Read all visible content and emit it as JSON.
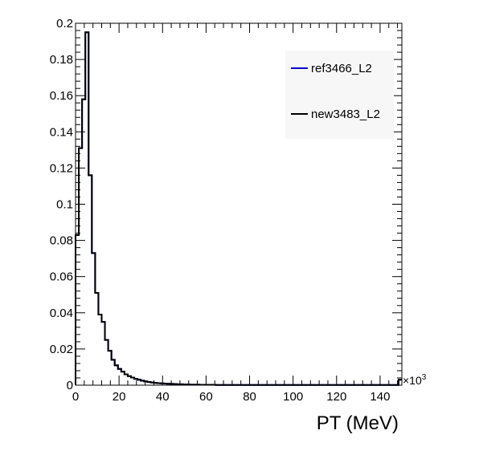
{
  "chart_data": {
    "type": "line",
    "title": "",
    "xlabel": "PT (MeV)",
    "ylabel": "",
    "x_multiplier": "×10",
    "x_multiplier_exponent": "3",
    "xlim": [
      0,
      150
    ],
    "ylim": [
      0,
      0.2
    ],
    "x_ticks": [
      0,
      20,
      40,
      60,
      80,
      100,
      120,
      140
    ],
    "x_tick_labels": [
      "0",
      "20",
      "40",
      "60",
      "80",
      "100",
      "120",
      "140"
    ],
    "y_ticks": [
      0,
      0.02,
      0.04,
      0.06,
      0.08,
      0.1,
      0.12,
      0.14,
      0.16,
      0.18,
      0.2
    ],
    "y_tick_labels": [
      "0",
      "0.02",
      "0.04",
      "0.06",
      "0.08",
      "0.1",
      "0.12",
      "0.14",
      "0.16",
      "0.18",
      "0.2"
    ],
    "bin_width": 1.5,
    "grid": false,
    "legend_position": "top-right",
    "series": [
      {
        "name": "ref3466_L2",
        "color": "#0000cc",
        "values": [
          0.083,
          0.131,
          0.158,
          0.195,
          0.116,
          0.073,
          0.051,
          0.039,
          0.035,
          0.025,
          0.019,
          0.014,
          0.011,
          0.009,
          0.0075,
          0.006,
          0.005,
          0.0042,
          0.0035,
          0.003,
          0.0025,
          0.0021,
          0.0018,
          0.0015,
          0.0013,
          0.0011,
          0.001,
          0.0009,
          0.0008,
          0.0007,
          0.0006,
          0.0005,
          0.0005,
          0.0004,
          0.0004,
          0.0003,
          0.0003,
          0.0003,
          0.0002,
          0.0002,
          0.0002,
          0.0002,
          0.0002,
          0.0001,
          0.0001,
          0.0001,
          0.0001,
          0.0001,
          0.0001,
          0.0001,
          0.0001,
          0.0001,
          0.0001,
          0.0001,
          0.0001,
          0.0001,
          0.0001,
          0.0001,
          0.0001,
          0.0001,
          0.0001,
          0.0001,
          0.0001,
          0.0001,
          0.0001,
          0.0001,
          0.0001,
          0.0001,
          0.0001,
          0.0001,
          0.0001,
          0.0001,
          0.0001,
          0.0001,
          0.0001,
          0.0001,
          0.0001,
          0.0001,
          0.0001,
          0.0001,
          0.0001,
          0.0001,
          0.0001,
          0.0001,
          0.0001,
          0.0001,
          0.0001,
          0.0001,
          0.0001,
          0.0001,
          0.0001,
          0.0001,
          0.0001,
          0.0001,
          0.0001,
          0.0001,
          0.0001,
          0.0001,
          0.0001,
          0.003
        ]
      },
      {
        "name": "new3483_L2",
        "color": "#000000",
        "values": [
          0.083,
          0.131,
          0.158,
          0.195,
          0.116,
          0.073,
          0.051,
          0.039,
          0.035,
          0.025,
          0.019,
          0.014,
          0.011,
          0.009,
          0.0075,
          0.006,
          0.005,
          0.0042,
          0.0035,
          0.003,
          0.0025,
          0.0021,
          0.0018,
          0.0015,
          0.0013,
          0.0011,
          0.001,
          0.0009,
          0.0008,
          0.0007,
          0.0006,
          0.0005,
          0.0005,
          0.0004,
          0.0004,
          0.0003,
          0.0003,
          0.0003,
          0.0002,
          0.0002,
          0.0002,
          0.0002,
          0.0002,
          0.0001,
          0.0001,
          0.0001,
          0.0001,
          0.0001,
          0.0001,
          0.0001,
          0.0001,
          0.0001,
          0.0001,
          0.0001,
          0.0001,
          0.0001,
          0.0001,
          0.0001,
          0.0001,
          0.0001,
          0.0001,
          0.0001,
          0.0001,
          0.0001,
          0.0001,
          0.0001,
          0.0001,
          0.0001,
          0.0001,
          0.0001,
          0.0001,
          0.0001,
          0.0001,
          0.0001,
          0.0001,
          0.0001,
          0.0001,
          0.0001,
          0.0001,
          0.0001,
          0.0001,
          0.0001,
          0.0001,
          0.0001,
          0.0001,
          0.0001,
          0.0001,
          0.0001,
          0.0001,
          0.0001,
          0.0001,
          0.0001,
          0.0001,
          0.0001,
          0.0001,
          0.0001,
          0.0001,
          0.0001,
          0.0001,
          0.003
        ]
      }
    ]
  }
}
